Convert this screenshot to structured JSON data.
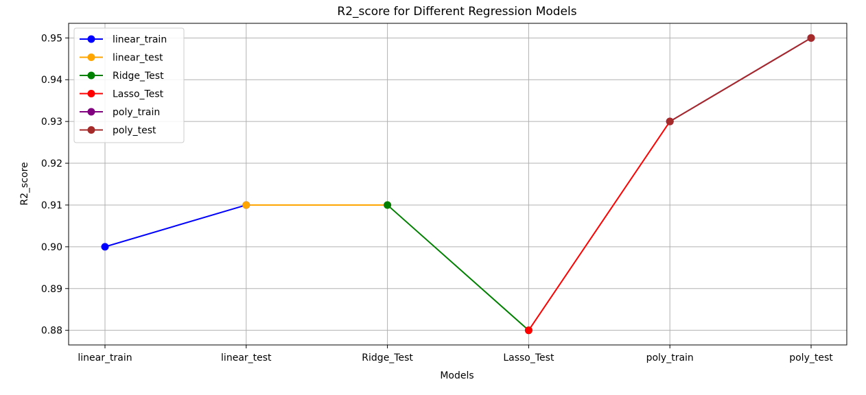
{
  "chart_data": {
    "type": "line",
    "title": "R2_score for Different Regression Models",
    "xlabel": "Models",
    "ylabel": "R2_score",
    "categories": [
      "linear_train",
      "linear_test",
      "Ridge_Test",
      "Lasso_Test",
      "poly_train",
      "poly_test"
    ],
    "values": [
      0.9,
      0.91,
      0.91,
      0.88,
      0.93,
      0.95
    ],
    "ylim": [
      0.8765,
      0.9535
    ],
    "yticks": [
      "0.88",
      "0.89",
      "0.90",
      "0.91",
      "0.92",
      "0.93",
      "0.94",
      "0.95"
    ],
    "grid": true,
    "legend_position": "top-left",
    "series": [
      {
        "name": "linear_train",
        "color": "#0000ff",
        "from": 0,
        "to": 1
      },
      {
        "name": "linear_test",
        "color": "#ffa500",
        "from": 1,
        "to": 2
      },
      {
        "name": "Ridge_Test",
        "color": "#008000",
        "from": 2,
        "to": 3
      },
      {
        "name": "Lasso_Test",
        "color": "#ff0000",
        "from": 3,
        "to": 4
      },
      {
        "name": "poly_train",
        "color": "#800080",
        "from": 4,
        "to": 5
      },
      {
        "name": "poly_test",
        "color": "#a52a2a",
        "from": 4,
        "to": 5
      }
    ]
  }
}
